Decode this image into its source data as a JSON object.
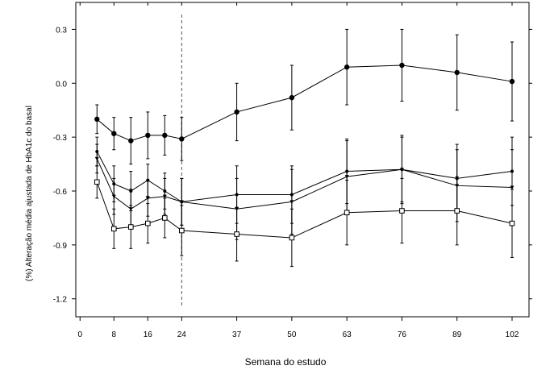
{
  "chart_data": {
    "type": "line",
    "xlabel": "Semana do estudo",
    "ylabel": "(%) Alteração média ajustada de HbA1c do basal",
    "xlim": [
      -1,
      106
    ],
    "ylim": [
      -1.3,
      0.45
    ],
    "xticks": [
      0,
      8,
      16,
      24,
      37,
      50,
      63,
      76,
      89,
      102
    ],
    "yticks": [
      0.3,
      0.0,
      -0.3,
      -0.6,
      -0.9,
      -1.2
    ],
    "ytick_labels": [
      "0.3",
      "0.0",
      "-0.3",
      "-0.6",
      "-0.9",
      "-1.2"
    ],
    "reference_line_x": 24,
    "grid": false,
    "legend": "none",
    "x": [
      4,
      8,
      12,
      16,
      20,
      24,
      37,
      50,
      63,
      76,
      89,
      102
    ],
    "series": [
      {
        "marker": "filled-circle",
        "values": [
          -0.2,
          -0.28,
          -0.32,
          -0.29,
          -0.29,
          -0.31,
          -0.16,
          -0.08,
          0.09,
          0.1,
          0.06,
          0.01
        ],
        "err": [
          0.08,
          0.09,
          0.13,
          0.13,
          0.11,
          0.12,
          0.16,
          0.18,
          0.21,
          0.2,
          0.21,
          0.22
        ]
      },
      {
        "marker": "small-filled",
        "values": [
          -0.38,
          -0.56,
          -0.6,
          -0.54,
          -0.6,
          -0.66,
          -0.62,
          -0.62,
          -0.49,
          -0.48,
          -0.53,
          -0.49
        ],
        "err": [
          0.08,
          0.1,
          0.11,
          0.09,
          0.1,
          0.13,
          0.16,
          0.16,
          0.18,
          0.18,
          0.19,
          0.19
        ]
      },
      {
        "marker": "triangle",
        "values": [
          -0.42,
          -0.63,
          -0.7,
          -0.64,
          -0.63,
          -0.66,
          -0.7,
          -0.66,
          -0.52,
          -0.48,
          -0.57,
          -0.58
        ],
        "err": [
          0.08,
          0.1,
          0.11,
          0.1,
          0.1,
          0.13,
          0.17,
          0.18,
          0.2,
          0.19,
          0.2,
          0.21
        ]
      },
      {
        "marker": "open-square",
        "values": [
          -0.55,
          -0.81,
          -0.8,
          -0.78,
          -0.75,
          -0.82,
          -0.84,
          -0.86,
          -0.72,
          -0.71,
          -0.71,
          -0.78
        ],
        "err": [
          0.09,
          0.11,
          0.12,
          0.11,
          0.11,
          0.14,
          0.15,
          0.16,
          0.18,
          0.18,
          0.19,
          0.19
        ]
      }
    ]
  }
}
